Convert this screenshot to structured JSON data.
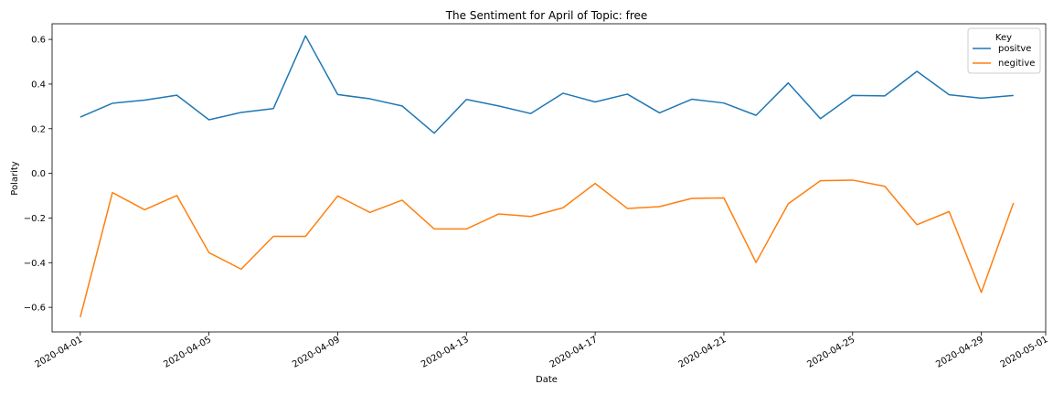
{
  "chart_data": {
    "type": "line",
    "title": "The Sentiment for April of Topic: free",
    "xlabel": "Date",
    "ylabel": "Polarity",
    "x": [
      "2020-04-01",
      "2020-04-02",
      "2020-04-03",
      "2020-04-04",
      "2020-04-05",
      "2020-04-06",
      "2020-04-07",
      "2020-04-08",
      "2020-04-09",
      "2020-04-10",
      "2020-04-11",
      "2020-04-12",
      "2020-04-13",
      "2020-04-14",
      "2020-04-15",
      "2020-04-16",
      "2020-04-17",
      "2020-04-18",
      "2020-04-19",
      "2020-04-20",
      "2020-04-21",
      "2020-04-22",
      "2020-04-23",
      "2020-04-24",
      "2020-04-25",
      "2020-04-26",
      "2020-04-27",
      "2020-04-28",
      "2020-04-29",
      "2020-04-30"
    ],
    "xlim": [
      "2020-03-31T03:00",
      "2020-05-01T00:00"
    ],
    "ylim": [
      -0.71,
      0.67
    ],
    "x_ticks": [
      "2020-04-01",
      "2020-04-05",
      "2020-04-09",
      "2020-04-13",
      "2020-04-17",
      "2020-04-21",
      "2020-04-25",
      "2020-04-29",
      "2020-05-01"
    ],
    "y_ticks": [
      -0.6,
      -0.4,
      -0.2,
      0.0,
      0.2,
      0.4,
      0.6
    ],
    "y_tick_labels": [
      "−0.6",
      "−0.4",
      "−0.2",
      "0.0",
      "0.2",
      "0.4",
      "0.6"
    ],
    "grid": false,
    "legend": {
      "title": "Key",
      "placement": "top-right"
    },
    "series": [
      {
        "name": "positve",
        "color": "#1f77b4",
        "values": [
          0.252,
          0.314,
          0.328,
          0.35,
          0.24,
          0.273,
          0.29,
          0.616,
          0.353,
          0.334,
          0.302,
          0.18,
          0.331,
          0.302,
          0.268,
          0.359,
          0.32,
          0.355,
          0.271,
          0.332,
          0.315,
          0.26,
          0.405,
          0.245,
          0.349,
          0.347,
          0.457,
          0.352,
          0.337,
          0.349
        ]
      },
      {
        "name": "negitive",
        "color": "#ff7f0e",
        "values": [
          -0.644,
          -0.086,
          -0.163,
          -0.099,
          -0.355,
          -0.429,
          -0.282,
          -0.282,
          -0.101,
          -0.175,
          -0.12,
          -0.249,
          -0.249,
          -0.182,
          -0.193,
          -0.154,
          -0.045,
          -0.157,
          -0.149,
          -0.112,
          -0.11,
          -0.399,
          -0.136,
          -0.033,
          -0.03,
          -0.058,
          -0.23,
          -0.171,
          -0.533,
          -0.132
        ]
      }
    ]
  }
}
